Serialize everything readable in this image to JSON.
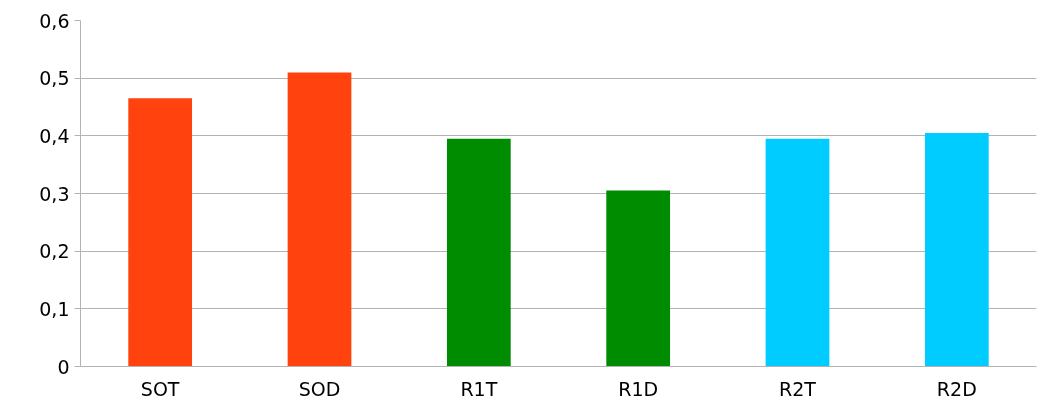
{
  "chart_data": {
    "type": "bar",
    "categories": [
      "SOT",
      "SOD",
      "R1T",
      "R1D",
      "R2T",
      "R2D"
    ],
    "values": [
      0.465,
      0.51,
      0.395,
      0.305,
      0.395,
      0.405
    ],
    "colors": [
      "#ff420e",
      "#ff420e",
      "#008c00",
      "#008c00",
      "#00ccff",
      "#00ccff"
    ],
    "ylim": [
      0,
      0.6
    ],
    "yticks": [
      {
        "value": 0,
        "label": "0"
      },
      {
        "value": 0.1,
        "label": "0,1"
      },
      {
        "value": 0.2,
        "label": "0,2"
      },
      {
        "value": 0.3,
        "label": "0,3"
      },
      {
        "value": 0.4,
        "label": "0,4"
      },
      {
        "value": 0.5,
        "label": "0,5"
      },
      {
        "value": 0.6,
        "label": "0,6"
      }
    ],
    "grid": "y"
  }
}
